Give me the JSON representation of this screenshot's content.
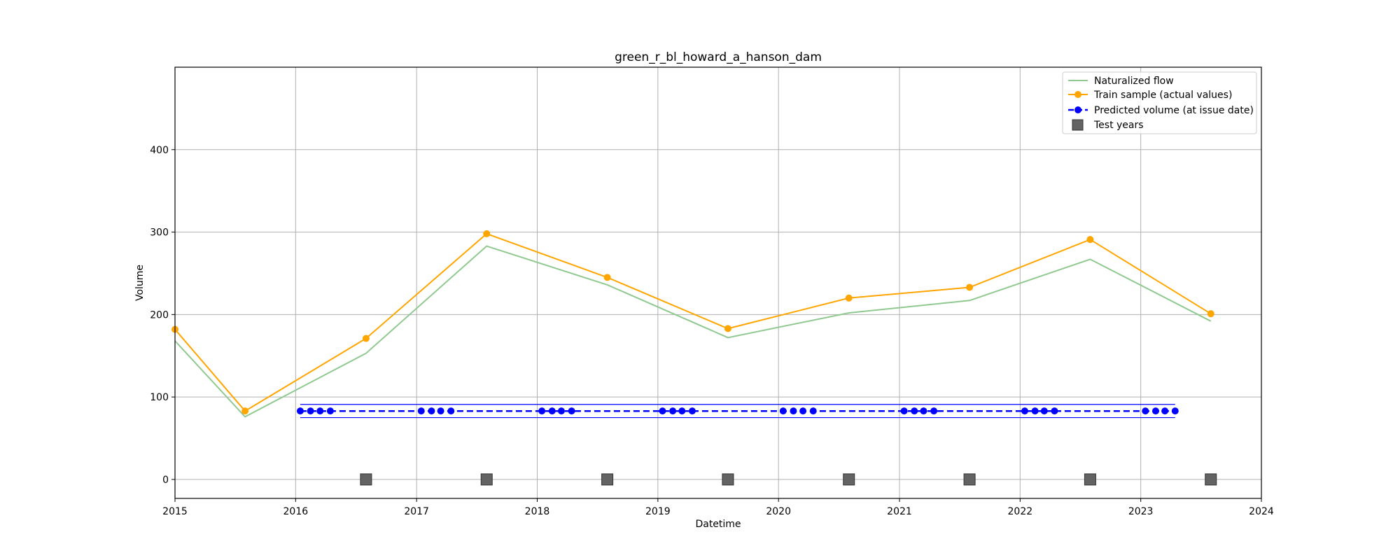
{
  "chart_data": {
    "type": "line",
    "title": "green_r_bl_howard_a_hanson_dam",
    "xlabel": "Datetime",
    "ylabel": "Volume",
    "xlim": [
      "2015-01-01",
      "2024-01-01"
    ],
    "ylim": [
      -23,
      500
    ],
    "x_ticks": [
      "2015",
      "2016",
      "2017",
      "2018",
      "2019",
      "2020",
      "2021",
      "2022",
      "2023",
      "2024"
    ],
    "y_ticks": [
      0,
      100,
      200,
      300,
      400
    ],
    "grid": true,
    "legend_position": "top-right",
    "colors": {
      "naturalized": "#90c990",
      "train": "#ffa500",
      "predicted": "#0000ff",
      "test": "#636363"
    },
    "series": [
      {
        "name": "Naturalized flow",
        "style": "line",
        "x": [
          "2015-01-01",
          "2015-08-01",
          "2016-08-01",
          "2017-08-01",
          "2018-08-01",
          "2019-08-01",
          "2020-08-01",
          "2021-08-01",
          "2022-08-01",
          "2023-08-01"
        ],
        "y": [
          168,
          76,
          153,
          283,
          236,
          172,
          202,
          217,
          267,
          192
        ]
      },
      {
        "name": "Train sample (actual values)",
        "style": "line-marker",
        "x": [
          "2015-01-01",
          "2015-08-01",
          "2016-08-01",
          "2017-08-01",
          "2018-08-01",
          "2019-08-01",
          "2020-08-01",
          "2021-08-01",
          "2022-08-01",
          "2023-08-01"
        ],
        "y": [
          182,
          83,
          171,
          298,
          245,
          183,
          220,
          233,
          291,
          201
        ]
      },
      {
        "name": "Predicted volume (at issue date)",
        "style": "dashed-marker",
        "x": [
          "2016-01-15",
          "2016-02-15",
          "2016-03-15",
          "2016-04-15",
          "2017-01-15",
          "2017-02-15",
          "2017-03-15",
          "2017-04-15",
          "2018-01-15",
          "2018-02-15",
          "2018-03-15",
          "2018-04-15",
          "2019-01-15",
          "2019-02-15",
          "2019-03-15",
          "2019-04-15",
          "2020-01-15",
          "2020-02-15",
          "2020-03-15",
          "2020-04-15",
          "2021-01-15",
          "2021-02-15",
          "2021-03-15",
          "2021-04-15",
          "2022-01-15",
          "2022-02-15",
          "2022-03-15",
          "2022-04-15",
          "2023-01-15",
          "2023-02-15",
          "2023-03-15",
          "2023-04-15"
        ],
        "y": [
          83,
          83,
          83,
          83,
          83,
          83,
          83,
          83,
          83,
          83,
          83,
          83,
          83,
          83,
          83,
          83,
          83,
          83,
          83,
          83,
          83,
          83,
          83,
          83,
          83,
          83,
          83,
          83,
          83,
          83,
          83,
          83
        ],
        "band": {
          "x": [
            "2016-01-15",
            "2023-04-15"
          ],
          "lower": 75,
          "upper": 91
        }
      },
      {
        "name": "Test years",
        "style": "square-marker",
        "x": [
          "2016-08-01",
          "2017-08-01",
          "2018-08-01",
          "2019-08-01",
          "2020-08-01",
          "2021-08-01",
          "2022-08-01",
          "2023-08-01"
        ],
        "y": [
          0,
          0,
          0,
          0,
          0,
          0,
          0,
          0
        ]
      }
    ]
  }
}
